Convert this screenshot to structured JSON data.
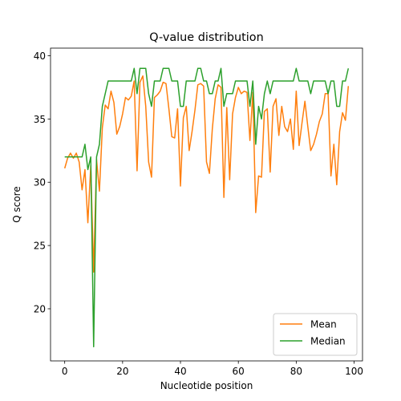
{
  "chart_data": {
    "type": "line",
    "title": "Q-value distribution",
    "xlabel": "Nucleotide position",
    "ylabel": "Q score",
    "xlim": [
      -4.9,
      102.9
    ],
    "ylim": [
      15.88,
      40.6
    ],
    "xticks": [
      0,
      20,
      40,
      60,
      80,
      100
    ],
    "yticks": [
      20,
      25,
      30,
      35,
      40
    ],
    "grid": false,
    "legend": {
      "position": "lower-right"
    },
    "x": [
      0,
      1,
      2,
      3,
      4,
      5,
      6,
      7,
      8,
      9,
      10,
      11,
      12,
      13,
      14,
      15,
      16,
      17,
      18,
      19,
      20,
      21,
      22,
      23,
      24,
      25,
      26,
      27,
      28,
      29,
      30,
      31,
      32,
      33,
      34,
      35,
      36,
      37,
      38,
      39,
      40,
      41,
      42,
      43,
      44,
      45,
      46,
      47,
      48,
      49,
      50,
      51,
      52,
      53,
      54,
      55,
      56,
      57,
      58,
      59,
      60,
      61,
      62,
      63,
      64,
      65,
      66,
      67,
      68,
      69,
      70,
      71,
      72,
      73,
      74,
      75,
      76,
      77,
      78,
      79,
      80,
      81,
      82,
      83,
      84,
      85,
      86,
      87,
      88,
      89,
      90,
      91,
      92,
      93,
      94,
      95,
      96,
      97,
      98
    ],
    "series": [
      {
        "name": "Mean",
        "color": "#ff7f0e",
        "values": [
          31.1,
          31.9,
          32.3,
          31.9,
          32.3,
          31.6,
          29.4,
          31.0,
          26.8,
          31.3,
          22.9,
          31.8,
          29.3,
          34.3,
          36.1,
          35.8,
          37.2,
          36.3,
          33.8,
          34.4,
          35.4,
          36.7,
          36.5,
          36.8,
          38.0,
          30.9,
          37.9,
          38.4,
          36.0,
          31.6,
          30.4,
          36.7,
          36.9,
          37.2,
          37.9,
          37.8,
          35.8,
          33.6,
          33.5,
          35.8,
          29.7,
          35.1,
          36.0,
          32.5,
          34.0,
          35.7,
          37.7,
          37.8,
          37.6,
          31.6,
          30.7,
          34.2,
          36.6,
          37.7,
          37.5,
          28.8,
          35.9,
          30.2,
          35.4,
          36.7,
          37.5,
          37.0,
          37.2,
          37.1,
          33.3,
          37.1,
          27.6,
          30.5,
          30.4,
          35.6,
          35.8,
          30.8,
          36.0,
          36.6,
          33.7,
          36.0,
          34.4,
          34.0,
          35.0,
          32.6,
          37.2,
          32.9,
          34.7,
          36.4,
          34.4,
          32.5,
          33.0,
          33.8,
          34.8,
          35.4,
          37.0,
          37.0,
          30.5,
          33.0,
          29.8,
          34.0,
          35.5,
          34.9,
          37.6
        ]
      },
      {
        "name": "Median",
        "color": "#2ca02c",
        "values": [
          32,
          32,
          32,
          32,
          32,
          32,
          32,
          33,
          31,
          32,
          17,
          32,
          33,
          36,
          37,
          38,
          38,
          38,
          38,
          38,
          38,
          38,
          38,
          38,
          39,
          37,
          39,
          39,
          39,
          37,
          36,
          38,
          38,
          38,
          39,
          39,
          39,
          38,
          38,
          38,
          36,
          36,
          38,
          38,
          38,
          38,
          39,
          39,
          38,
          38,
          37,
          37,
          38,
          38,
          39,
          36,
          37,
          37,
          37,
          38,
          38,
          38,
          38,
          38,
          36,
          38,
          33,
          36,
          35,
          37,
          38,
          37,
          38,
          38,
          38,
          38,
          38,
          38,
          38,
          38,
          39,
          38,
          38,
          38,
          38,
          37,
          38,
          38,
          38,
          38,
          38,
          37,
          38,
          38,
          36,
          36,
          38,
          38,
          39
        ]
      }
    ]
  }
}
